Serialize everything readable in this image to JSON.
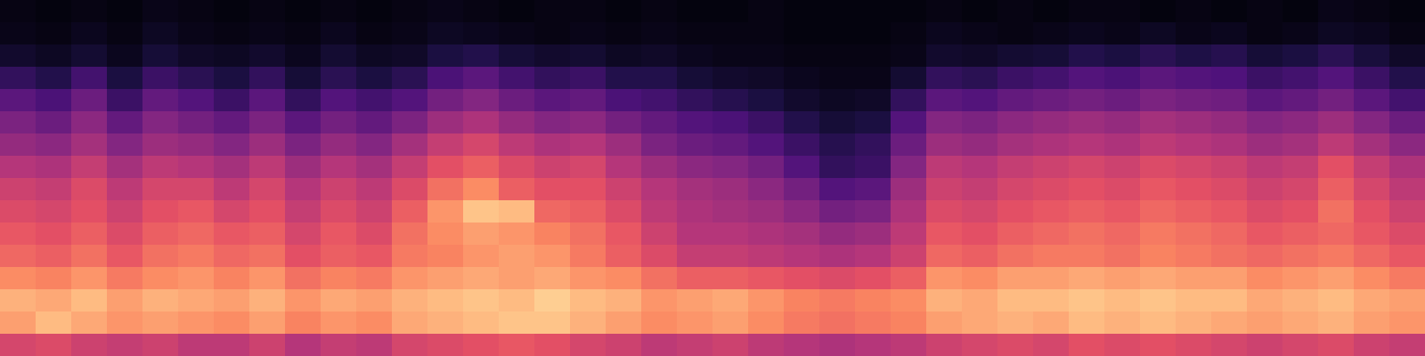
{
  "chart_data": {
    "type": "heatmap",
    "tick_labels": false,
    "color_range": [
      0,
      100
    ],
    "cells": [
      [
        3,
        2,
        3,
        2,
        4,
        3,
        2,
        3,
        2,
        3,
        2,
        3,
        4,
        3,
        2,
        3,
        3,
        2,
        3,
        2,
        2,
        3,
        2,
        2,
        2,
        2,
        3,
        2,
        3,
        2,
        3,
        3,
        2,
        3,
        2,
        3,
        2,
        4,
        3,
        2
      ],
      [
        4,
        3,
        5,
        3,
        6,
        4,
        3,
        4,
        3,
        5,
        3,
        4,
        6,
        5,
        4,
        3,
        4,
        3,
        4,
        3,
        3,
        3,
        2,
        2,
        2,
        3,
        5,
        4,
        3,
        4,
        5,
        4,
        6,
        4,
        5,
        3,
        4,
        6,
        5,
        3
      ],
      [
        8,
        6,
        9,
        5,
        10,
        7,
        6,
        8,
        5,
        9,
        6,
        7,
        12,
        14,
        10,
        8,
        9,
        6,
        7,
        5,
        4,
        4,
        3,
        3,
        3,
        4,
        8,
        7,
        9,
        10,
        14,
        12,
        16,
        13,
        15,
        10,
        12,
        16,
        11,
        7
      ],
      [
        18,
        14,
        22,
        12,
        20,
        16,
        12,
        18,
        10,
        16,
        12,
        16,
        24,
        28,
        22,
        18,
        20,
        14,
        14,
        10,
        8,
        7,
        5,
        4,
        4,
        9,
        18,
        16,
        20,
        22,
        26,
        24,
        28,
        26,
        25,
        20,
        22,
        26,
        20,
        14
      ],
      [
        28,
        24,
        32,
        20,
        30,
        26,
        20,
        28,
        18,
        26,
        22,
        26,
        34,
        38,
        32,
        28,
        30,
        24,
        22,
        18,
        15,
        12,
        8,
        6,
        7,
        18,
        28,
        26,
        30,
        32,
        34,
        32,
        36,
        34,
        33,
        28,
        30,
        34,
        28,
        22
      ],
      [
        36,
        32,
        40,
        30,
        38,
        34,
        30,
        36,
        28,
        34,
        30,
        36,
        44,
        48,
        42,
        38,
        40,
        34,
        30,
        26,
        24,
        20,
        14,
        10,
        12,
        26,
        38,
        36,
        40,
        42,
        44,
        42,
        46,
        44,
        42,
        38,
        40,
        44,
        38,
        32
      ],
      [
        42,
        40,
        46,
        38,
        44,
        42,
        38,
        44,
        36,
        42,
        38,
        46,
        54,
        58,
        52,
        48,
        50,
        44,
        36,
        32,
        30,
        26,
        20,
        15,
        18,
        32,
        44,
        42,
        46,
        48,
        50,
        48,
        52,
        50,
        48,
        44,
        46,
        52,
        46,
        40
      ],
      [
        50,
        48,
        54,
        46,
        52,
        50,
        46,
        52,
        44,
        50,
        46,
        54,
        62,
        66,
        60,
        56,
        58,
        50,
        44,
        40,
        38,
        34,
        26,
        18,
        20,
        38,
        52,
        50,
        54,
        56,
        58,
        56,
        60,
        58,
        56,
        52,
        54,
        62,
        54,
        48
      ],
      [
        56,
        54,
        60,
        52,
        58,
        58,
        52,
        58,
        50,
        56,
        52,
        60,
        70,
        76,
        66,
        62,
        62,
        56,
        50,
        46,
        44,
        40,
        34,
        26,
        28,
        44,
        56,
        54,
        58,
        60,
        62,
        60,
        64,
        62,
        60,
        56,
        58,
        66,
        58,
        52
      ],
      [
        60,
        58,
        62,
        56,
        62,
        64,
        58,
        62,
        54,
        60,
        56,
        66,
        78,
        88,
        86,
        68,
        66,
        60,
        52,
        48,
        46,
        44,
        40,
        34,
        36,
        48,
        60,
        58,
        62,
        64,
        66,
        64,
        68,
        66,
        64,
        60,
        62,
        70,
        62,
        56
      ],
      [
        64,
        62,
        66,
        60,
        66,
        68,
        64,
        66,
        58,
        64,
        60,
        70,
        76,
        80,
        78,
        74,
        70,
        64,
        56,
        50,
        50,
        48,
        46,
        42,
        44,
        52,
        64,
        62,
        66,
        68,
        70,
        68,
        72,
        70,
        68,
        64,
        66,
        68,
        64,
        60
      ],
      [
        68,
        66,
        70,
        64,
        70,
        72,
        68,
        70,
        62,
        66,
        64,
        72,
        74,
        78,
        80,
        78,
        72,
        66,
        60,
        54,
        54,
        52,
        50,
        48,
        50,
        56,
        68,
        66,
        70,
        72,
        72,
        70,
        74,
        72,
        70,
        68,
        70,
        72,
        68,
        64
      ],
      [
        76,
        74,
        78,
        72,
        76,
        78,
        74,
        78,
        70,
        74,
        72,
        78,
        80,
        82,
        80,
        82,
        78,
        76,
        70,
        66,
        66,
        64,
        62,
        60,
        62,
        66,
        78,
        76,
        80,
        80,
        82,
        80,
        82,
        80,
        80,
        76,
        78,
        80,
        76,
        72
      ],
      [
        84,
        82,
        86,
        80,
        84,
        82,
        80,
        84,
        78,
        82,
        80,
        84,
        86,
        88,
        86,
        90,
        86,
        84,
        78,
        80,
        82,
        78,
        74,
        72,
        74,
        76,
        84,
        82,
        86,
        86,
        88,
        86,
        88,
        86,
        86,
        82,
        84,
        86,
        82,
        80
      ],
      [
        80,
        86,
        82,
        78,
        80,
        78,
        76,
        80,
        74,
        78,
        76,
        82,
        84,
        86,
        88,
        88,
        84,
        80,
        76,
        78,
        80,
        76,
        72,
        70,
        72,
        74,
        80,
        82,
        84,
        82,
        86,
        84,
        86,
        84,
        82,
        80,
        82,
        84,
        80,
        78
      ],
      [
        58,
        60,
        56,
        54,
        56,
        52,
        52,
        56,
        50,
        54,
        52,
        58,
        60,
        62,
        64,
        62,
        58,
        56,
        52,
        54,
        56,
        52,
        50,
        48,
        50,
        52,
        56,
        58,
        60,
        58,
        62,
        60,
        62,
        60,
        58,
        56,
        58,
        60,
        56,
        54
      ]
    ]
  }
}
